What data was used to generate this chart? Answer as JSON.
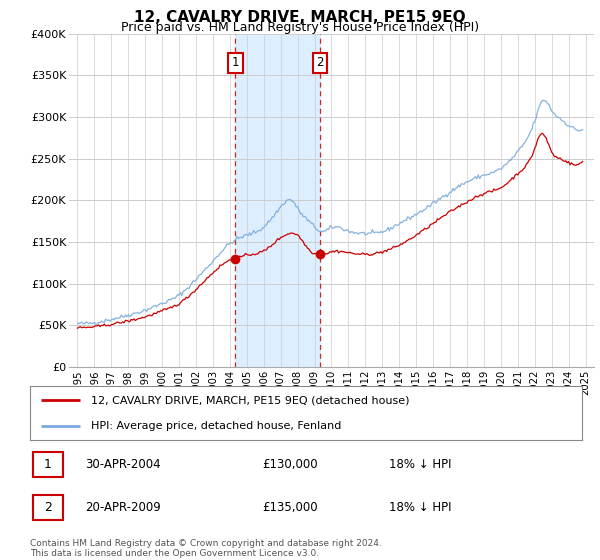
{
  "title": "12, CAVALRY DRIVE, MARCH, PE15 9EQ",
  "subtitle": "Price paid vs. HM Land Registry's House Price Index (HPI)",
  "legend_line1": "12, CAVALRY DRIVE, MARCH, PE15 9EQ (detached house)",
  "legend_line2": "HPI: Average price, detached house, Fenland",
  "footnote": "Contains HM Land Registry data © Crown copyright and database right 2024.\nThis data is licensed under the Open Government Licence v3.0.",
  "sale1_date": "30-APR-2004",
  "sale1_price": "£130,000",
  "sale1_hpi": "18% ↓ HPI",
  "sale2_date": "20-APR-2009",
  "sale2_price": "£135,000",
  "sale2_hpi": "18% ↓ HPI",
  "sale1_year": 2004.33,
  "sale1_value": 130000,
  "sale2_year": 2009.31,
  "sale2_value": 135000,
  "hpi_color": "#7aaadd",
  "property_color": "#cc0000",
  "shade_color": "#ddeeff",
  "marker_box_color": "#cc0000",
  "ylim": [
    0,
    400000
  ],
  "xlim_start": 1994.5,
  "xlim_end": 2025.5,
  "yticks": [
    0,
    50000,
    100000,
    150000,
    200000,
    250000,
    300000,
    350000,
    400000
  ],
  "ytick_labels": [
    "£0",
    "£50K",
    "£100K",
    "£150K",
    "£200K",
    "£250K",
    "£300K",
    "£350K",
    "£400K"
  ]
}
